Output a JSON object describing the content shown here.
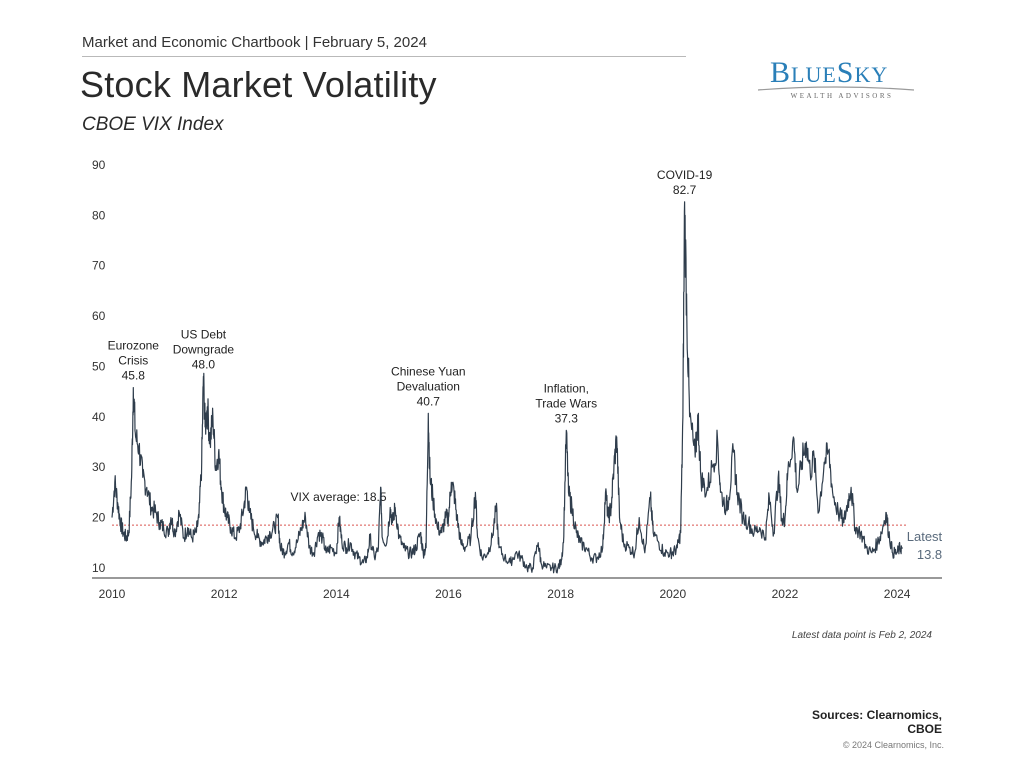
{
  "header": {
    "chartbook": "Market and Economic Chartbook | February 5, 2024",
    "title": "Stock Market Volatility",
    "subtitle": "CBOE VIX Index"
  },
  "logo": {
    "word": "BLUESKY",
    "sub": "WEALTH ADVISORS",
    "color": "#2a7fb8"
  },
  "chart_data": {
    "type": "line",
    "series": [
      {
        "points": [
          [
            2010.0,
            20
          ],
          [
            2010.05,
            27
          ],
          [
            2010.1,
            23
          ],
          [
            2010.15,
            19
          ],
          [
            2010.2,
            17
          ],
          [
            2010.25,
            16
          ],
          [
            2010.3,
            17
          ],
          [
            2010.35,
            28
          ],
          [
            2010.38,
            45.8
          ],
          [
            2010.42,
            36
          ],
          [
            2010.48,
            34
          ],
          [
            2010.55,
            28
          ],
          [
            2010.62,
            26
          ],
          [
            2010.7,
            22
          ],
          [
            2010.78,
            21
          ],
          [
            2010.85,
            19
          ],
          [
            2010.92,
            18
          ],
          [
            2011.0,
            17
          ],
          [
            2011.05,
            20
          ],
          [
            2011.12,
            17
          ],
          [
            2011.2,
            21
          ],
          [
            2011.28,
            16
          ],
          [
            2011.35,
            18
          ],
          [
            2011.42,
            16
          ],
          [
            2011.5,
            17
          ],
          [
            2011.55,
            20
          ],
          [
            2011.6,
            31
          ],
          [
            2011.63,
            48.0
          ],
          [
            2011.66,
            38
          ],
          [
            2011.7,
            42
          ],
          [
            2011.75,
            35
          ],
          [
            2011.8,
            40
          ],
          [
            2011.85,
            30
          ],
          [
            2011.9,
            33
          ],
          [
            2011.95,
            26
          ],
          [
            2012.0,
            22
          ],
          [
            2012.05,
            20
          ],
          [
            2012.12,
            18
          ],
          [
            2012.2,
            16
          ],
          [
            2012.28,
            18
          ],
          [
            2012.35,
            22
          ],
          [
            2012.4,
            26
          ],
          [
            2012.45,
            21
          ],
          [
            2012.52,
            18
          ],
          [
            2012.6,
            16
          ],
          [
            2012.68,
            15
          ],
          [
            2012.75,
            16
          ],
          [
            2012.82,
            17
          ],
          [
            2012.9,
            18
          ],
          [
            2012.96,
            20
          ],
          [
            2013.0,
            14
          ],
          [
            2013.08,
            13
          ],
          [
            2013.15,
            15
          ],
          [
            2013.22,
            13
          ],
          [
            2013.3,
            15
          ],
          [
            2013.38,
            18
          ],
          [
            2013.45,
            20
          ],
          [
            2013.52,
            14
          ],
          [
            2013.6,
            13
          ],
          [
            2013.68,
            17
          ],
          [
            2013.75,
            16
          ],
          [
            2013.82,
            13
          ],
          [
            2013.9,
            14
          ],
          [
            2014.0,
            13
          ],
          [
            2014.05,
            20
          ],
          [
            2014.1,
            15
          ],
          [
            2014.18,
            14
          ],
          [
            2014.25,
            15
          ],
          [
            2014.32,
            13
          ],
          [
            2014.4,
            12
          ],
          [
            2014.48,
            11
          ],
          [
            2014.55,
            12
          ],
          [
            2014.6,
            16
          ],
          [
            2014.68,
            12
          ],
          [
            2014.75,
            14
          ],
          [
            2014.79,
            26
          ],
          [
            2014.82,
            16
          ],
          [
            2014.9,
            15
          ],
          [
            2014.96,
            22
          ],
          [
            2015.0,
            19
          ],
          [
            2015.05,
            22
          ],
          [
            2015.12,
            16
          ],
          [
            2015.2,
            14
          ],
          [
            2015.28,
            13
          ],
          [
            2015.35,
            13
          ],
          [
            2015.42,
            14
          ],
          [
            2015.5,
            17
          ],
          [
            2015.55,
            13
          ],
          [
            2015.6,
            14
          ],
          [
            2015.64,
            40.7
          ],
          [
            2015.67,
            28
          ],
          [
            2015.72,
            24
          ],
          [
            2015.8,
            18
          ],
          [
            2015.88,
            17
          ],
          [
            2015.95,
            20
          ],
          [
            2016.0,
            20
          ],
          [
            2016.05,
            27
          ],
          [
            2016.1,
            25
          ],
          [
            2016.15,
            20
          ],
          [
            2016.22,
            15
          ],
          [
            2016.3,
            14
          ],
          [
            2016.4,
            16
          ],
          [
            2016.48,
            25
          ],
          [
            2016.52,
            16
          ],
          [
            2016.6,
            12
          ],
          [
            2016.7,
            13
          ],
          [
            2016.78,
            16
          ],
          [
            2016.85,
            22
          ],
          [
            2016.9,
            14
          ],
          [
            2017.0,
            12
          ],
          [
            2017.1,
            11
          ],
          [
            2017.2,
            13
          ],
          [
            2017.3,
            12
          ],
          [
            2017.4,
            10
          ],
          [
            2017.5,
            10
          ],
          [
            2017.6,
            15
          ],
          [
            2017.65,
            11
          ],
          [
            2017.75,
            10
          ],
          [
            2017.85,
            10
          ],
          [
            2017.95,
            10
          ],
          [
            2018.0,
            11
          ],
          [
            2018.05,
            15
          ],
          [
            2018.1,
            37.3
          ],
          [
            2018.14,
            25
          ],
          [
            2018.2,
            22
          ],
          [
            2018.28,
            17
          ],
          [
            2018.35,
            15
          ],
          [
            2018.45,
            14
          ],
          [
            2018.55,
            12
          ],
          [
            2018.65,
            12
          ],
          [
            2018.75,
            14
          ],
          [
            2018.8,
            25
          ],
          [
            2018.85,
            20
          ],
          [
            2018.9,
            22
          ],
          [
            2018.95,
            30
          ],
          [
            2019.0,
            36
          ],
          [
            2019.05,
            20
          ],
          [
            2019.12,
            15
          ],
          [
            2019.22,
            14
          ],
          [
            2019.32,
            13
          ],
          [
            2019.4,
            20
          ],
          [
            2019.5,
            13
          ],
          [
            2019.6,
            24
          ],
          [
            2019.65,
            17
          ],
          [
            2019.75,
            15
          ],
          [
            2019.85,
            13
          ],
          [
            2019.95,
            13
          ],
          [
            2020.0,
            13
          ],
          [
            2020.08,
            14
          ],
          [
            2020.14,
            17
          ],
          [
            2020.18,
            40
          ],
          [
            2020.21,
            82.7
          ],
          [
            2020.25,
            60
          ],
          [
            2020.3,
            40
          ],
          [
            2020.4,
            32
          ],
          [
            2020.45,
            40
          ],
          [
            2020.5,
            28
          ],
          [
            2020.6,
            25
          ],
          [
            2020.7,
            30
          ],
          [
            2020.8,
            35
          ],
          [
            2020.85,
            25
          ],
          [
            2020.95,
            22
          ],
          [
            2021.0,
            24
          ],
          [
            2021.08,
            33
          ],
          [
            2021.15,
            25
          ],
          [
            2021.25,
            20
          ],
          [
            2021.35,
            19
          ],
          [
            2021.45,
            17
          ],
          [
            2021.55,
            18
          ],
          [
            2021.65,
            16
          ],
          [
            2021.72,
            24
          ],
          [
            2021.8,
            17
          ],
          [
            2021.88,
            28
          ],
          [
            2021.95,
            19
          ],
          [
            2022.0,
            20
          ],
          [
            2022.05,
            29
          ],
          [
            2022.15,
            36
          ],
          [
            2022.22,
            25
          ],
          [
            2022.3,
            31
          ],
          [
            2022.38,
            35
          ],
          [
            2022.45,
            29
          ],
          [
            2022.52,
            32
          ],
          [
            2022.6,
            21
          ],
          [
            2022.7,
            31
          ],
          [
            2022.78,
            33
          ],
          [
            2022.85,
            25
          ],
          [
            2022.95,
            21
          ],
          [
            2023.05,
            19
          ],
          [
            2023.12,
            23
          ],
          [
            2023.18,
            26
          ],
          [
            2023.25,
            18
          ],
          [
            2023.35,
            17
          ],
          [
            2023.45,
            14
          ],
          [
            2023.55,
            13
          ],
          [
            2023.65,
            15
          ],
          [
            2023.72,
            17
          ],
          [
            2023.8,
            21
          ],
          [
            2023.85,
            17
          ],
          [
            2023.92,
            13
          ],
          [
            2024.0,
            13
          ],
          [
            2024.05,
            14
          ],
          [
            2024.09,
            13.8
          ]
        ]
      }
    ],
    "xlim": [
      2010,
      2024.8
    ],
    "ylim": [
      8,
      90
    ],
    "x_ticks": [
      2010,
      2012,
      2014,
      2016,
      2018,
      2020,
      2022,
      2024
    ],
    "y_ticks": [
      10,
      20,
      30,
      40,
      50,
      60,
      70,
      80,
      90
    ],
    "average": {
      "value": 18.5,
      "label": "VIX average: 18.5"
    },
    "annotations": [
      {
        "lines": [
          "Eurozone",
          "Crisis",
          "45.8"
        ],
        "x": 2010.38,
        "value": 45.8
      },
      {
        "lines": [
          "US Debt",
          "Downgrade",
          "48.0"
        ],
        "x": 2011.63,
        "value": 48.0
      },
      {
        "lines": [
          "Chinese Yuan",
          "Devaluation",
          "40.7"
        ],
        "x": 2015.64,
        "value": 40.7
      },
      {
        "lines": [
          "Inflation,",
          "Trade Wars",
          "37.3"
        ],
        "x": 2018.1,
        "value": 37.3
      },
      {
        "lines": [
          "COVID-19",
          "82.7"
        ],
        "x": 2020.21,
        "value": 82.7
      }
    ],
    "latest": {
      "lines": [
        "Latest",
        "13.8"
      ],
      "x": 2024.09,
      "value": 13.8
    },
    "line_color": "#2f3d4c",
    "average_color": "#d9534f",
    "grid": false
  },
  "note": "Latest data point is Feb 2, 2024",
  "sources": "Sources: Clearnomics, CBOE",
  "copyright": "© 2024 Clearnomics, Inc."
}
